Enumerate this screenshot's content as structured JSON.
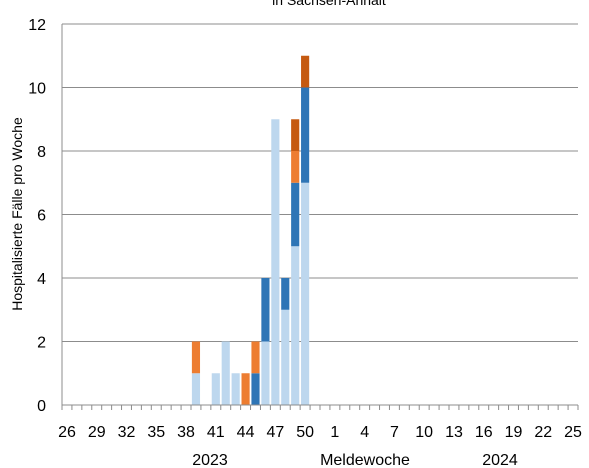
{
  "chart_data": {
    "type": "bar",
    "stacked": true,
    "title": "in Sachsen-Anhalt",
    "ylabel": "Hospitalisierte Fälle pro Woche",
    "xlabel": "Meldewoche",
    "ylim": [
      0,
      12
    ],
    "yticks": [
      "0",
      "2",
      "4",
      "6",
      "8",
      "10",
      "12"
    ],
    "grid": true,
    "legend": "none",
    "year_labels": [
      "2023",
      "2024"
    ],
    "weeks": [
      "26",
      "27",
      "28",
      "29",
      "30",
      "31",
      "32",
      "33",
      "34",
      "35",
      "36",
      "37",
      "38",
      "39",
      "40",
      "41",
      "42",
      "43",
      "44",
      "45",
      "46",
      "47",
      "48",
      "49",
      "50",
      "51",
      "52",
      "1",
      "2",
      "3",
      "4",
      "5",
      "6",
      "7",
      "8",
      "9",
      "10",
      "11",
      "12",
      "13",
      "14",
      "15",
      "16",
      "17",
      "18",
      "19",
      "20",
      "21",
      "22",
      "23",
      "24",
      "25"
    ],
    "week_tick_labels": [
      "26",
      "29",
      "32",
      "35",
      "38",
      "41",
      "44",
      "47",
      "50",
      "1",
      "4",
      "7",
      "10",
      "13",
      "16",
      "19",
      "22",
      "25"
    ],
    "series": [
      {
        "color": "#bdd7ee",
        "values": [
          0,
          0,
          0,
          0,
          0,
          0,
          0,
          0,
          0,
          0,
          0,
          0,
          0,
          1,
          0,
          1,
          2,
          1,
          0,
          0,
          2,
          9,
          3,
          5,
          7,
          0,
          0,
          0,
          0,
          0,
          0,
          0,
          0,
          0,
          0,
          0,
          0,
          0,
          0,
          0,
          0,
          0,
          0,
          0,
          0,
          0,
          0,
          0,
          0,
          0,
          0,
          0
        ]
      },
      {
        "color": "#2e75b6",
        "values": [
          0,
          0,
          0,
          0,
          0,
          0,
          0,
          0,
          0,
          0,
          0,
          0,
          0,
          0,
          0,
          0,
          0,
          0,
          0,
          1,
          2,
          0,
          1,
          2,
          3,
          0,
          0,
          0,
          0,
          0,
          0,
          0,
          0,
          0,
          0,
          0,
          0,
          0,
          0,
          0,
          0,
          0,
          0,
          0,
          0,
          0,
          0,
          0,
          0,
          0,
          0,
          0
        ]
      },
      {
        "color": "#ed7d31",
        "values": [
          0,
          0,
          0,
          0,
          0,
          0,
          0,
          0,
          0,
          0,
          0,
          0,
          0,
          1,
          0,
          0,
          0,
          0,
          1,
          1,
          0,
          0,
          0,
          1,
          0,
          0,
          0,
          0,
          0,
          0,
          0,
          0,
          0,
          0,
          0,
          0,
          0,
          0,
          0,
          0,
          0,
          0,
          0,
          0,
          0,
          0,
          0,
          0,
          0,
          0,
          0,
          0
        ]
      },
      {
        "color": "#c55a11",
        "values": [
          0,
          0,
          0,
          0,
          0,
          0,
          0,
          0,
          0,
          0,
          0,
          0,
          0,
          0,
          0,
          0,
          0,
          0,
          0,
          0,
          0,
          0,
          0,
          1,
          1,
          0,
          0,
          0,
          0,
          0,
          0,
          0,
          0,
          0,
          0,
          0,
          0,
          0,
          0,
          0,
          0,
          0,
          0,
          0,
          0,
          0,
          0,
          0,
          0,
          0,
          0,
          0
        ]
      }
    ]
  }
}
